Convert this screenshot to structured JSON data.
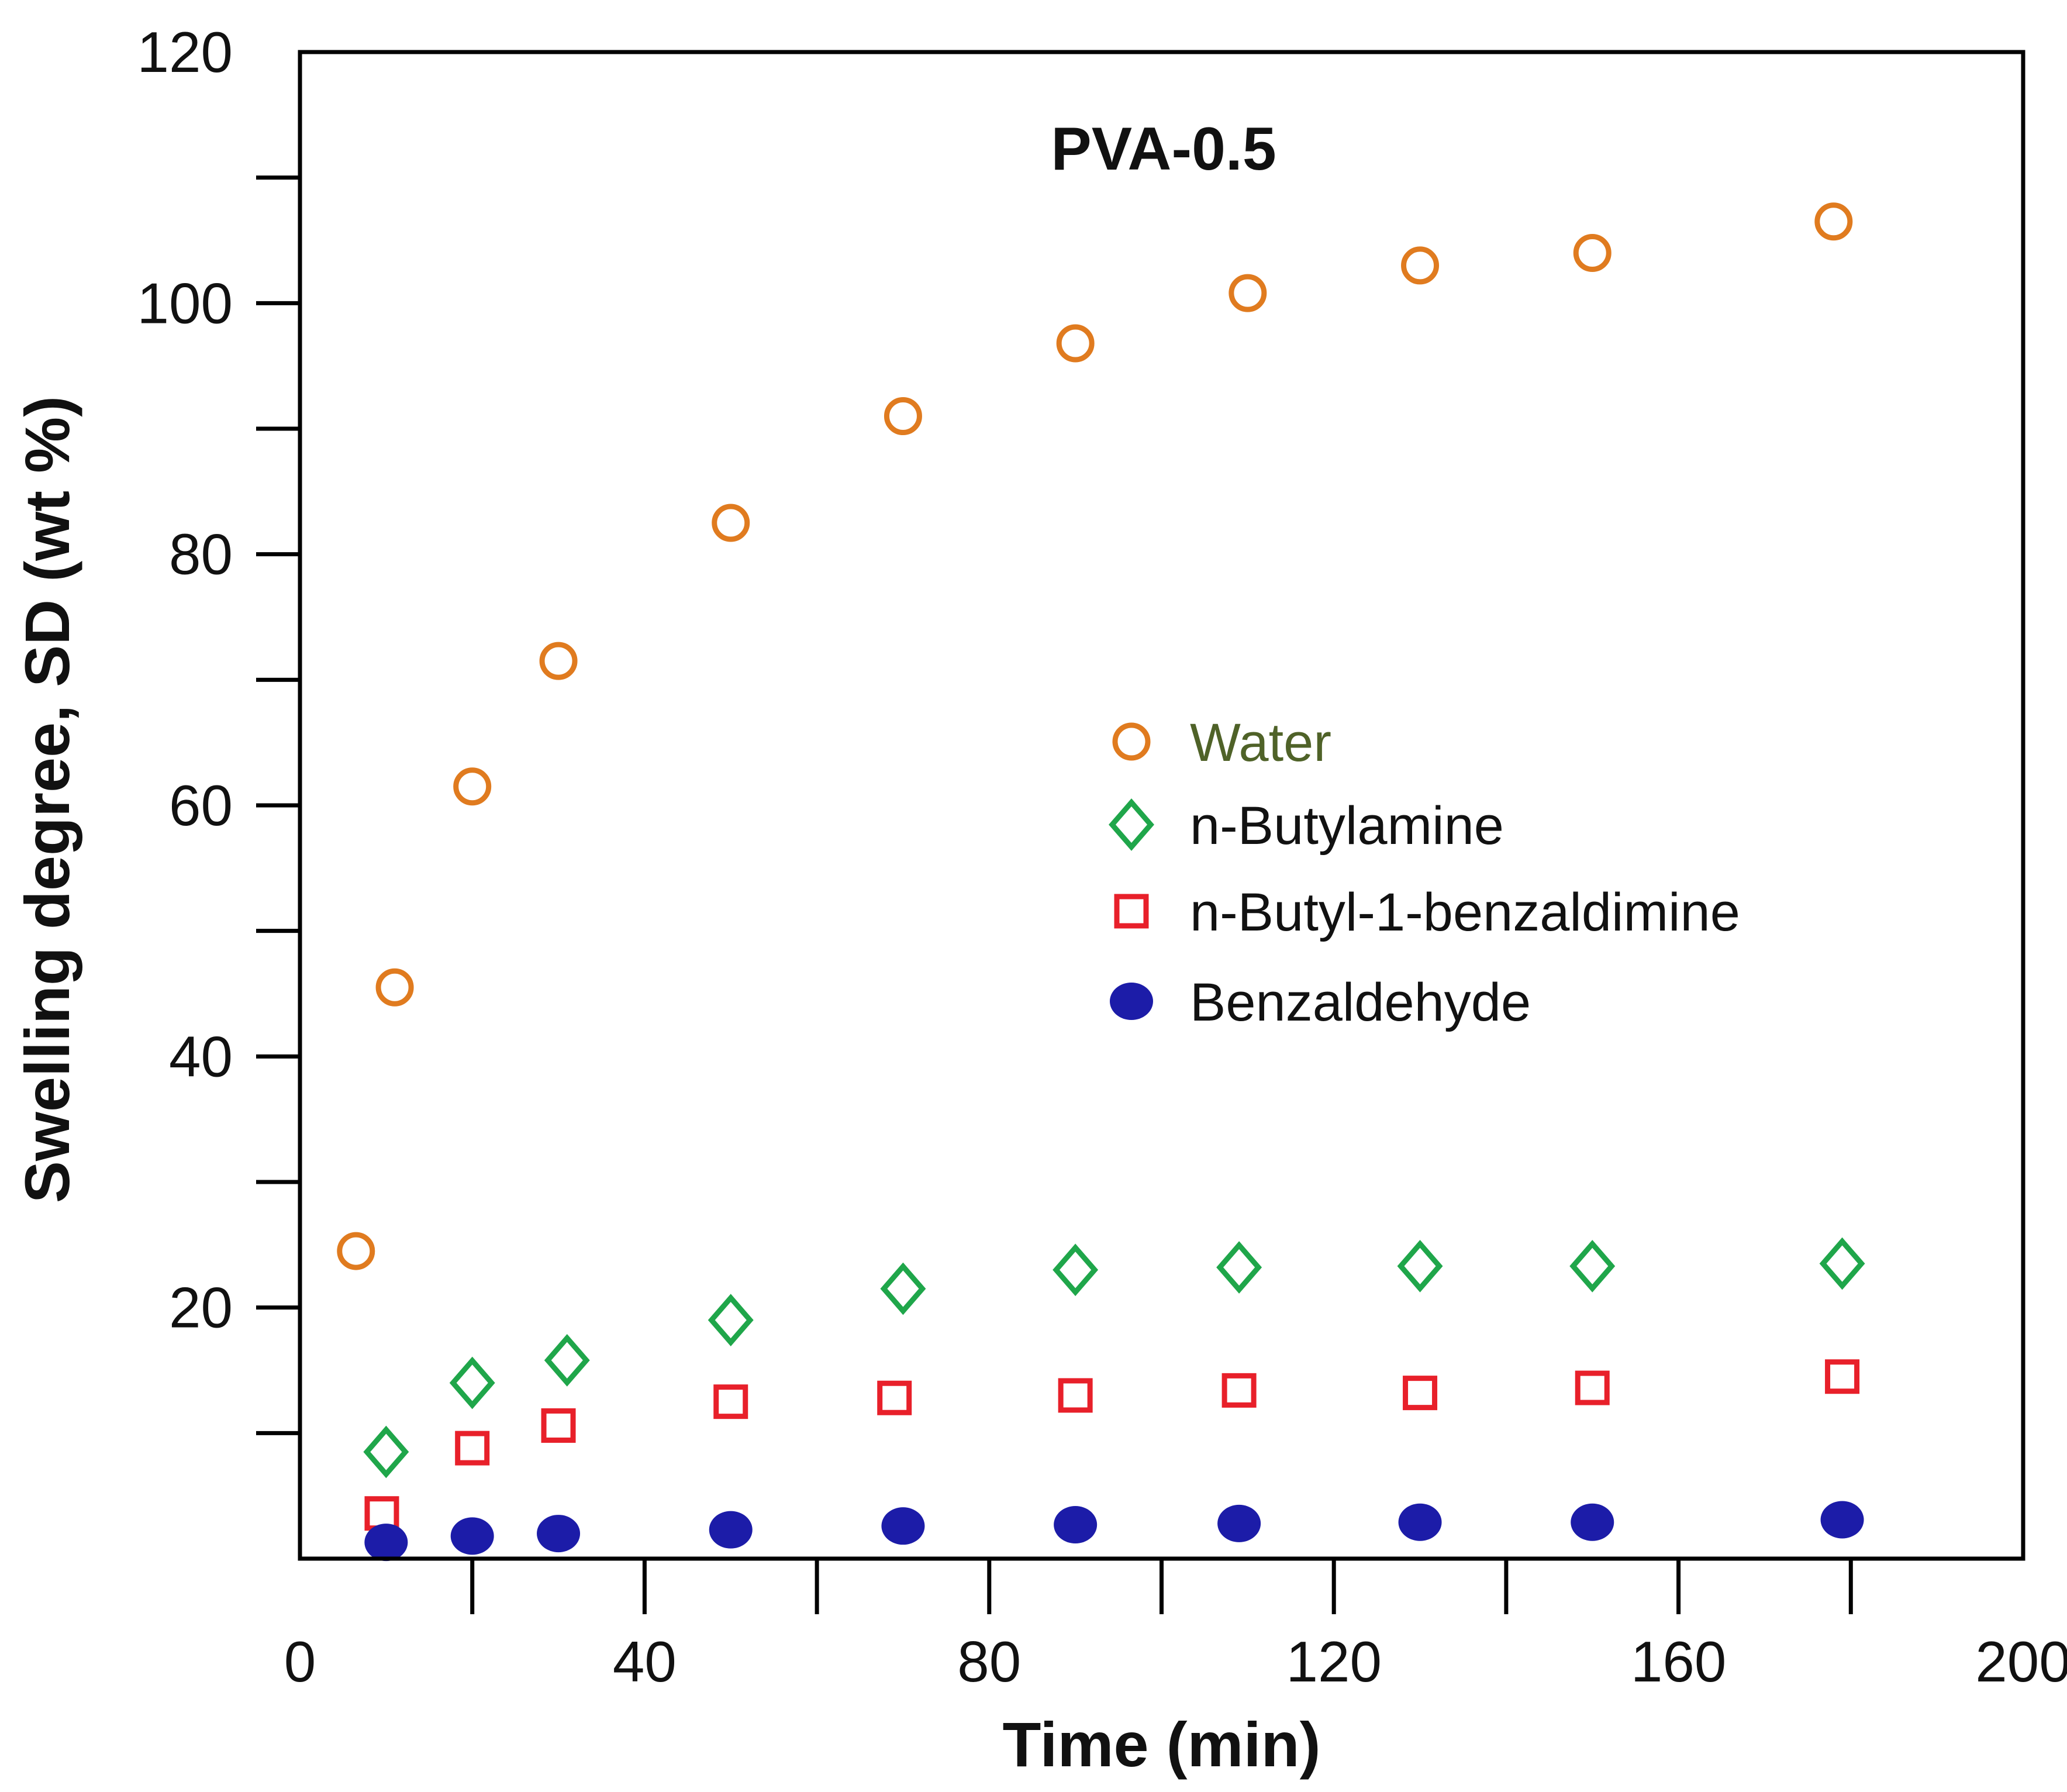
{
  "chart_data": {
    "type": "scatter",
    "title": "PVA-0.5",
    "xlabel": "Time (min)",
    "ylabel": "Swelling degree, SD (wt %)",
    "xlim": [
      0,
      200
    ],
    "ylim": [
      0,
      120
    ],
    "x_ticks": [
      0,
      40,
      80,
      120,
      160,
      200
    ],
    "y_ticks": [
      20,
      40,
      60,
      80,
      100,
      120
    ],
    "x_minor_ticks": [
      20,
      60,
      100,
      140,
      180
    ],
    "y_minor_ticks": [
      10,
      30,
      50,
      70,
      90,
      110
    ],
    "grid": false,
    "legend_position": "center-right",
    "series": [
      {
        "name": "Water",
        "marker": "circle-open",
        "color": "#e07b1f",
        "label_color": "#4f6228",
        "x": [
          6.5,
          11,
          20,
          30,
          50,
          70,
          90,
          110,
          130,
          150,
          178
        ],
        "y": [
          24.5,
          45.5,
          61.5,
          71.5,
          82.5,
          91,
          96.8,
          100.8,
          103,
          104,
          106.5
        ]
      },
      {
        "name": "n-Butylamine",
        "marker": "diamond-open",
        "color": "#1fa64a",
        "label_color": "#111111",
        "x": [
          10,
          20,
          31,
          50,
          70,
          90,
          109,
          130,
          150,
          179
        ],
        "y": [
          8.5,
          14,
          15.8,
          19,
          21.5,
          23,
          23.2,
          23.3,
          23.3,
          23.5
        ]
      },
      {
        "name": "n-Butyl-1-benzaldimine",
        "marker": "square-open",
        "color": "#e8202a",
        "label_color": "#111111",
        "x": [
          9.5,
          20,
          30,
          50,
          69,
          90,
          109,
          130,
          150,
          179
        ],
        "y": [
          3.6,
          8.8,
          10.6,
          12.5,
          12.8,
          13,
          13.4,
          13.2,
          13.6,
          14.5
        ]
      },
      {
        "name": "Benzaldehyde",
        "marker": "circle-filled",
        "color": "#1c1ca8",
        "label_color": "#111111",
        "x": [
          10,
          20,
          30,
          50,
          70,
          90,
          109,
          130,
          150,
          179
        ],
        "y": [
          1.3,
          1.8,
          2.0,
          2.3,
          2.6,
          2.7,
          2.8,
          2.9,
          2.9,
          3.1
        ]
      }
    ]
  }
}
